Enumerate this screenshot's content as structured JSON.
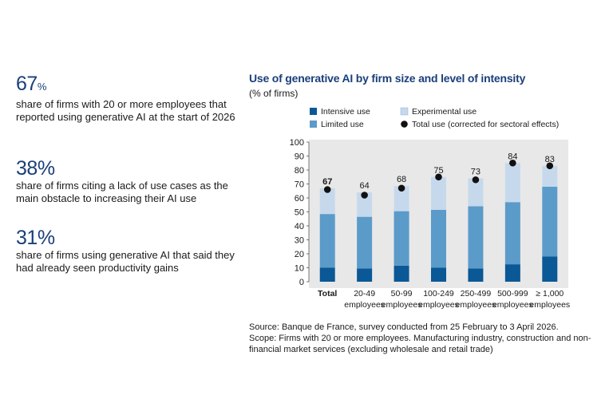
{
  "stats": [
    {
      "value": "67",
      "unit": "%",
      "text": "share of firms with 20 or more employees that reported using generative AI at the start of 2026"
    },
    {
      "value": "38",
      "unit": "%",
      "text": "share of firms citing a lack of use cases as the main obstacle to increasing their AI use"
    },
    {
      "value": "31",
      "unit": "%",
      "text": "share of firms using generative AI that said they had already seen productivity gains"
    }
  ],
  "source": {
    "line1": "Source: Banque de France, survey conducted from 25 February to 3 April 2026.",
    "line2": "Scope: Firms with 20 or more employees. Manufacturing industry, construction and non-financial market services (excluding wholesale and retail trade)"
  },
  "chart_data": {
    "type": "bar",
    "stacked": true,
    "title": "Use of generative AI by firm size and level of intensity",
    "ylabel": "(% of firms)",
    "ylim": [
      0,
      100
    ],
    "yticks": [
      0,
      10,
      20,
      30,
      40,
      50,
      60,
      70,
      80,
      90,
      100
    ],
    "grid": false,
    "legend_position": "top",
    "categories": [
      [
        "Total"
      ],
      [
        "20-49",
        "employees"
      ],
      [
        "50-99",
        "employees"
      ],
      [
        "100-249",
        "employees"
      ],
      [
        "250-499",
        "employees"
      ],
      [
        "500-999",
        "employees"
      ],
      [
        "≥ 1,000",
        "employees"
      ]
    ],
    "series": [
      {
        "name": "Intensive use",
        "color": "#0a5896",
        "values": [
          10,
          9.5,
          11.5,
          10,
          9.5,
          12.5,
          18
        ]
      },
      {
        "name": "Limited use",
        "color": "#5b9bc9",
        "values": [
          38.5,
          37,
          39,
          41.5,
          44.5,
          44.5,
          50
        ]
      },
      {
        "name": "Experimental use",
        "color": "#c6d9ec",
        "values": [
          18.5,
          17.5,
          18,
          23.5,
          20,
          28,
          15
        ]
      }
    ],
    "total_series": {
      "name": "Total use (corrected for sectoral effects)",
      "color": "#111111",
      "values": [
        66,
        62,
        67,
        75,
        73,
        85,
        83
      ]
    },
    "data_labels": [
      "67",
      "64",
      "68",
      "75",
      "73",
      "84",
      "83"
    ]
  }
}
